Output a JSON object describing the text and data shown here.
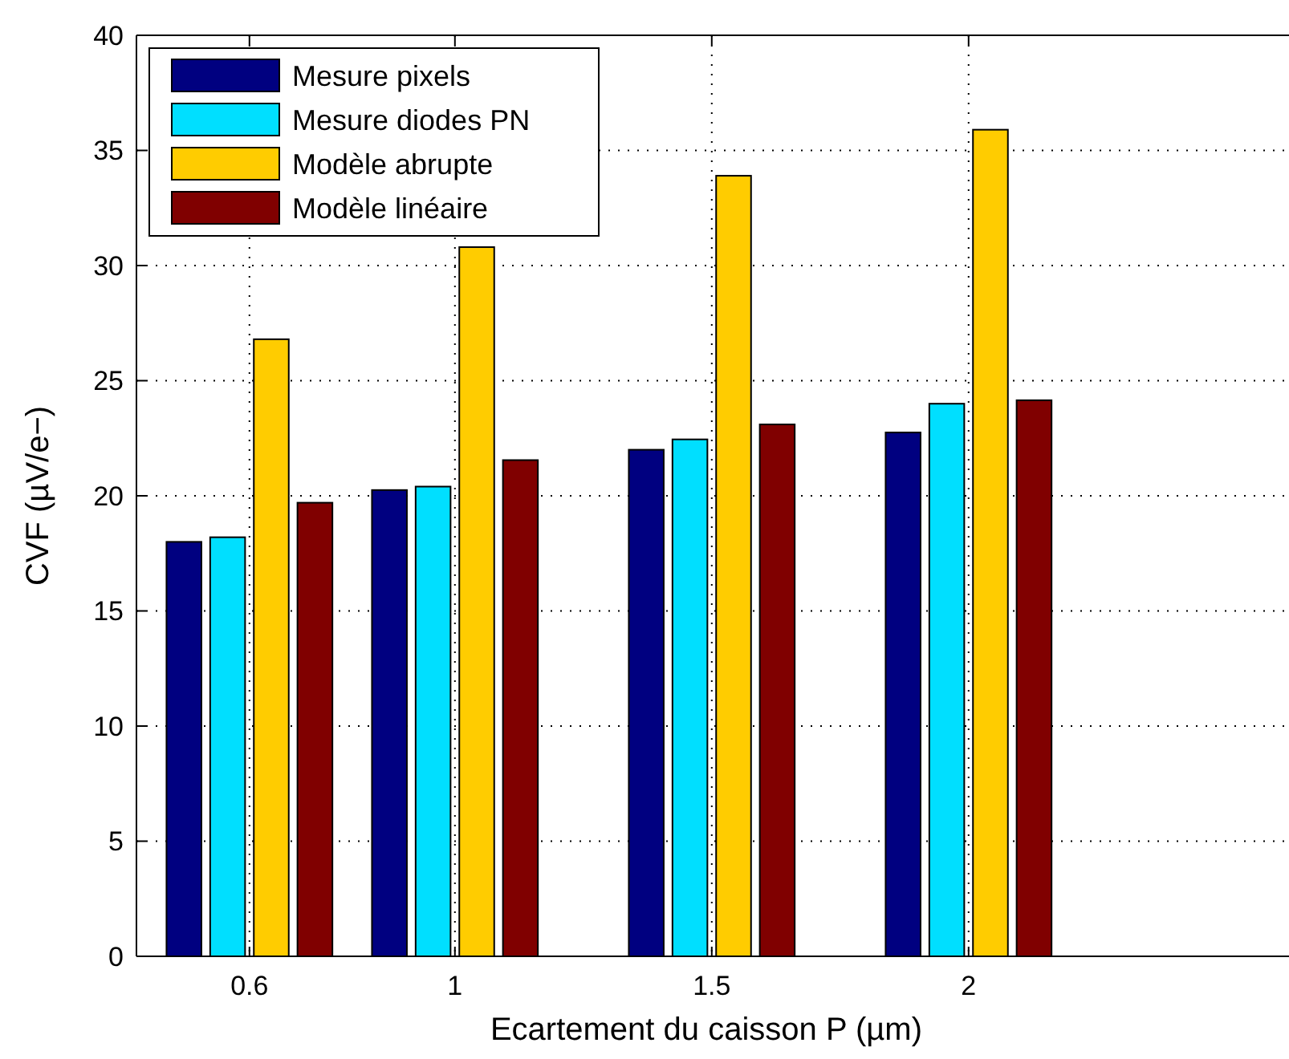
{
  "chart_data": {
    "type": "bar",
    "xlabel": "Ecartement du caisson P (µm)",
    "ylabel": "CVF (µV/e−)",
    "x": [
      0.6,
      1,
      1.5,
      2
    ],
    "xlim": [
      0.38,
      2.63
    ],
    "xticks": [
      0.6,
      1,
      1.5,
      2
    ],
    "ylim": [
      0,
      40
    ],
    "yticks": [
      0,
      5,
      10,
      15,
      20,
      25,
      30,
      35,
      40
    ],
    "grid": true,
    "legend": "top left",
    "series": [
      {
        "name": "Mesure pixels",
        "color": "#000080",
        "values": [
          18.0,
          20.25,
          22.0,
          22.75
        ]
      },
      {
        "name": "Mesure diodes PN",
        "color": "#00dfff",
        "values": [
          18.2,
          20.4,
          22.45,
          24.0
        ]
      },
      {
        "name": "Modèle abrupte",
        "color": "#ffcc00",
        "values": [
          26.8,
          30.8,
          33.9,
          35.9
        ]
      },
      {
        "name": "Modèle linéaire",
        "color": "#800000",
        "values": [
          19.7,
          21.55,
          23.1,
          24.15
        ]
      }
    ]
  }
}
